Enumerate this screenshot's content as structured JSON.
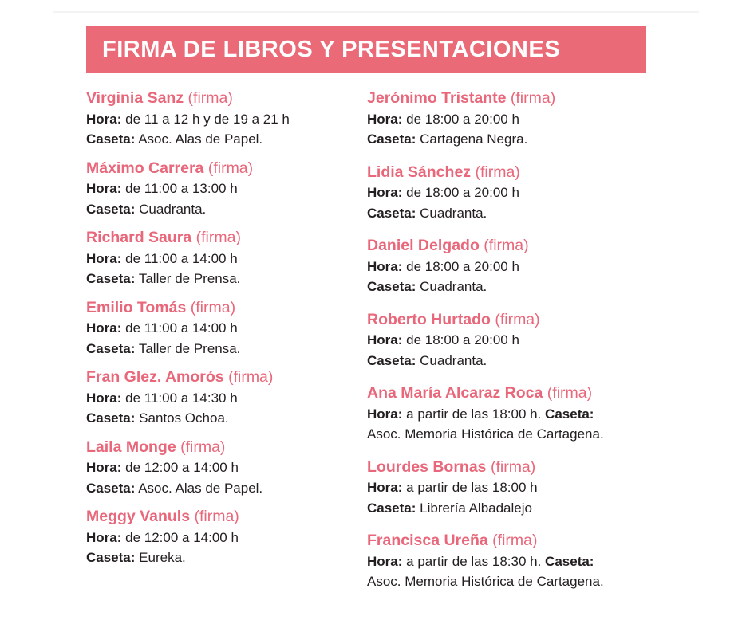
{
  "title": "FIRMA DE LIBROS Y PRESENTACIONES",
  "labels": {
    "hora": "Hora:",
    "caseta": "Caseta:"
  },
  "colors": {
    "accent": "#ea6a78",
    "name": "#e8677a",
    "text": "#231f20"
  },
  "left": [
    {
      "name": "Virginia Sanz",
      "tag": "(firma)",
      "hora": "de 11 a 12 h y de 19 a 21 h",
      "caseta": "Asoc. Alas de Papel."
    },
    {
      "name": "Máximo Carrera",
      "tag": "(firma)",
      "hora": "de 11:00 a 13:00 h",
      "caseta": "Cuadranta."
    },
    {
      "name": "Richard Saura",
      "tag": "(firma)",
      "hora": "de 11:00 a 14:00 h",
      "caseta": "Taller de Prensa."
    },
    {
      "name": "Emilio Tomás",
      "tag": "(firma)",
      "hora": "de 11:00 a 14:00 h",
      "caseta": "Taller de Prensa."
    },
    {
      "name": "Fran Glez. Amorós",
      "tag": "(firma)",
      "hora": "de 11:00 a 14:30 h",
      "caseta": "Santos Ochoa."
    },
    {
      "name": "Laila Monge",
      "tag": "(firma)",
      "hora": "de 12:00 a 14:00 h",
      "caseta": "Asoc. Alas de Papel."
    },
    {
      "name": "Meggy Vanuls",
      "tag": "(firma)",
      "hora": "de 12:00 a 14:00 h",
      "caseta": "Eureka."
    }
  ],
  "right": [
    {
      "name": "Jerónimo Tristante",
      "tag": "(firma)",
      "hora": "de 18:00 a 20:00 h",
      "caseta": "Cartagena Negra."
    },
    {
      "name": "Lidia Sánchez",
      "tag": "(firma)",
      "hora": "de 18:00 a 20:00 h",
      "caseta": "Cuadranta."
    },
    {
      "name": "Daniel Delgado",
      "tag": "(firma)",
      "hora": "de 18:00 a 20:00 h",
      "caseta": "Cuadranta."
    },
    {
      "name": "Roberto Hurtado",
      "tag": "(firma)",
      "hora": "de 18:00 a 20:00 h",
      "caseta": "Cuadranta."
    }
  ],
  "right_inline": [
    {
      "name": "Ana María Alcaraz Roca",
      "tag": "(firma)",
      "hora": "a partir de las 18:00 h.",
      "caseta": "Asoc. Memoria Histórica de Cartagena."
    }
  ],
  "right_mid": [
    {
      "name": "Lourdes Bornas",
      "tag": "(firma)",
      "hora": "a partir de las 18:00 h",
      "caseta": "Librería Albadalejo"
    }
  ],
  "right_inline2": [
    {
      "name": "Francisca Ureña",
      "tag": "(firma)",
      "hora": "a partir de las 18:30 h.",
      "caseta": "Asoc. Memoria Histórica de Cartagena."
    }
  ]
}
